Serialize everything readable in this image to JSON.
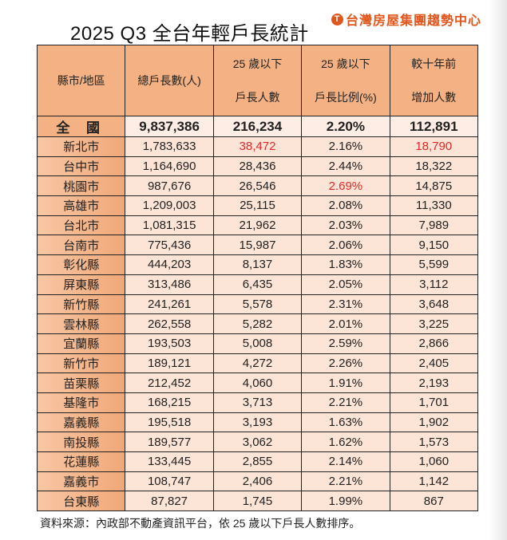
{
  "title": "2025 Q3 全台年輕戶長統計",
  "logo": "台灣房屋集團趨勢中心",
  "colors": {
    "header": "#f4b183",
    "cell": "#fce4d6",
    "highlight": "#e02828",
    "logo": "#e0561c"
  },
  "columns": [
    {
      "line1": "縣市/地區"
    },
    {
      "line1": "總戶長數(人)"
    },
    {
      "line1": "25 歲以下",
      "line2": "戶長人數"
    },
    {
      "line1": "25 歲以下",
      "line2": "戶長比例(%)"
    },
    {
      "line1": "較十年前",
      "line2": "增加人數"
    }
  ],
  "total": [
    "全 國",
    "9,837,386",
    "216,234",
    "2.20%",
    "112,891"
  ],
  "rows": [
    {
      "cells": [
        "新北市",
        "1,783,633",
        "38,472",
        "2.16%",
        "18,790"
      ],
      "red": [
        2,
        4
      ]
    },
    {
      "cells": [
        "台中市",
        "1,164,690",
        "28,436",
        "2.44%",
        "18,322"
      ],
      "red": []
    },
    {
      "cells": [
        "桃園市",
        "987,676",
        "26,546",
        "2.69%",
        "14,875"
      ],
      "red": [
        3
      ]
    },
    {
      "cells": [
        "高雄市",
        "1,209,003",
        "25,115",
        "2.08%",
        "11,330"
      ],
      "red": []
    },
    {
      "cells": [
        "台北市",
        "1,081,315",
        "21,962",
        "2.03%",
        "7,989"
      ],
      "red": []
    },
    {
      "cells": [
        "台南市",
        "775,436",
        "15,987",
        "2.06%",
        "9,150"
      ],
      "red": []
    },
    {
      "cells": [
        "彰化縣",
        "444,203",
        "8,137",
        "1.83%",
        "5,599"
      ],
      "red": []
    },
    {
      "cells": [
        "屏東縣",
        "313,486",
        "6,435",
        "2.05%",
        "3,112"
      ],
      "red": []
    },
    {
      "cells": [
        "新竹縣",
        "241,261",
        "5,578",
        "2.31%",
        "3,648"
      ],
      "red": []
    },
    {
      "cells": [
        "雲林縣",
        "262,558",
        "5,282",
        "2.01%",
        "3,225"
      ],
      "red": []
    },
    {
      "cells": [
        "宜蘭縣",
        "193,503",
        "5,008",
        "2.59%",
        "2,866"
      ],
      "red": []
    },
    {
      "cells": [
        "新竹市",
        "189,121",
        "4,272",
        "2.26%",
        "2,405"
      ],
      "red": []
    },
    {
      "cells": [
        "苗栗縣",
        "212,452",
        "4,060",
        "1.91%",
        "2,193"
      ],
      "red": []
    },
    {
      "cells": [
        "基隆市",
        "168,215",
        "3,713",
        "2.21%",
        "1,701"
      ],
      "red": []
    },
    {
      "cells": [
        "嘉義縣",
        "195,518",
        "3,193",
        "1.63%",
        "1,902"
      ],
      "red": []
    },
    {
      "cells": [
        "南投縣",
        "189,577",
        "3,062",
        "1.62%",
        "1,573"
      ],
      "red": []
    },
    {
      "cells": [
        "花蓮縣",
        "133,445",
        "2,855",
        "2.14%",
        "1,060"
      ],
      "red": []
    },
    {
      "cells": [
        "嘉義市",
        "108,747",
        "2,406",
        "2.21%",
        "1,142"
      ],
      "red": []
    },
    {
      "cells": [
        "台東縣",
        "87,827",
        "1,745",
        "1.99%",
        "867"
      ],
      "red": []
    }
  ],
  "note": "資料來源：內政部不動產資訊平台，依 25 歲以下戶長人數排序。"
}
